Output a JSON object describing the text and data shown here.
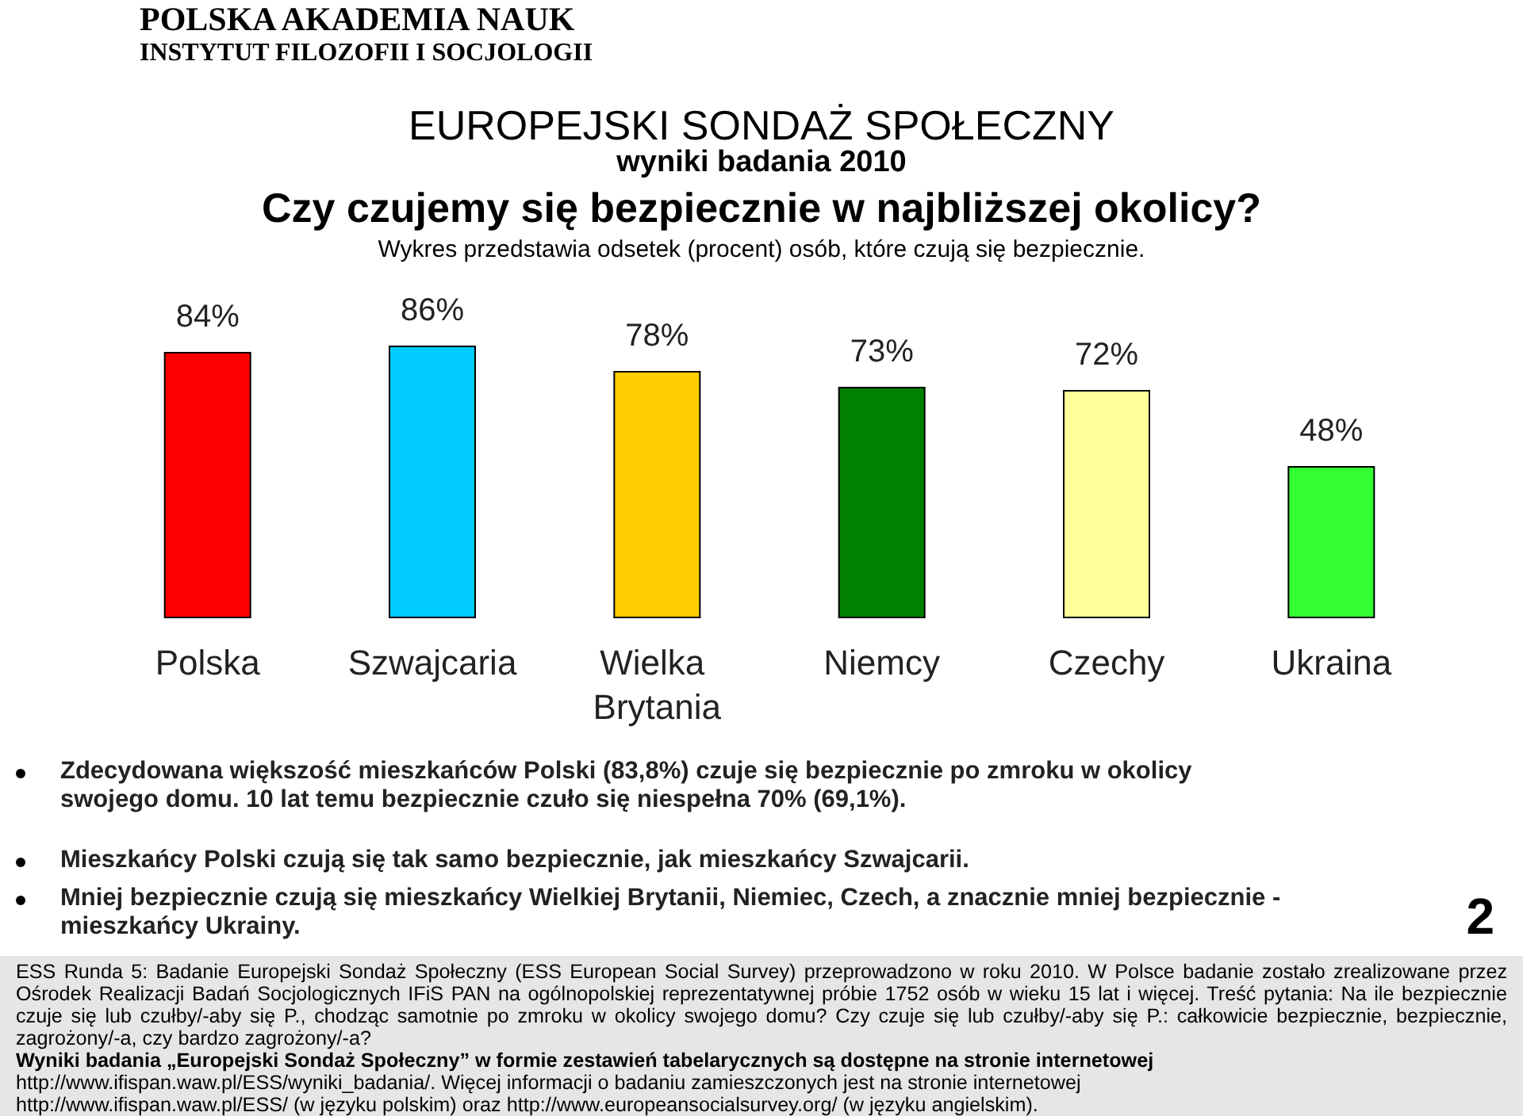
{
  "chart_data": {
    "type": "bar",
    "title": "Czy czujemy się bezpiecznie w najbliższej okolicy?",
    "subtitle": "Wykres przedstawia odsetek (procent) osób, które czują się bezpiecznie.",
    "categories": [
      "Polska",
      "Szwajcaria",
      "Wielka Brytania",
      "Niemcy",
      "Czechy",
      "Ukraina"
    ],
    "values": [
      84,
      86,
      78,
      73,
      72,
      48
    ],
    "colors": [
      "#ff0000",
      "#00ccff",
      "#ffcc00",
      "#008000",
      "#ffff99",
      "#33ff33"
    ],
    "value_labels": [
      "84%",
      "86%",
      "78%",
      "73%",
      "72%",
      "48%"
    ],
    "annotations": [
      "POLSKA AKADEMIA NAUK",
      "INSTYTUT FILOZOFII I SOCJOLOGII",
      "EUROPEJSKI SONDAŻ SPOŁECZNY",
      "wyniki badania 2010",
      "Zdecydowana większość mieszkańców Polski (83,8%) czuje się bezpiecznie po zmroku w okolicy swojego domu. 10 lat temu bezpiecznie czuło się niespełna 70% (69,1%).",
      "Mieszkańcy Polski czują się tak samo bezpiecznie, jak mieszkańcy Szwajcarii.",
      "Mniej bezpiecznie czują się mieszkańcy Wielkiej Brytanii, Niemiec, Czech, a znacznie mniej bezpiecznie - mieszkańcy Ukrainy.",
      "2",
      "ESS Runda 5: Badanie Europejski Sondaż Społeczny (ESS European Social Survey) przeprowadzono w roku 2010. W Polsce badanie zostało zrealizowane przez Ośrodek Realizacji Badań Socjologicznych IFiS PAN na ogólnopolskiej reprezentatywnej próbie 1752 osób w wieku 15 lat i więcej. Treść pytania: Na ile bezpiecznie czuje się lub czułby/-aby się P., chodząc samotnie po zmroku w okolicy swojego domu? Czy czuje się lub czułby/-aby się P.: całkowicie bezpiecznie, bezpiecznie, zagrożony/-a, czy bardzo zagrożony/-a?",
      "Wyniki badania „Europejski Sondaż Społeczny” w formie zestawień tabelarycznych są dostępne na stronie internetowej",
      "http://www.ifispan.waw.pl/ESS/wyniki_badania/. Więcej informacji o badaniu zamieszczonych jest na stronie internetowej",
      "http://www.ifispan.waw.pl/ESS/ (w języku polskim) oraz http://www.europeansocialsurvey.org/ (w języku angielskim)."
    ]
  }
}
